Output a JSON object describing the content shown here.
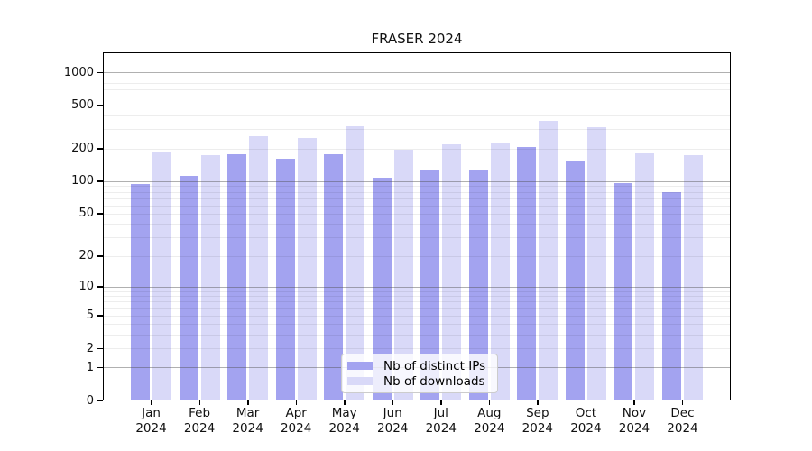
{
  "title": "FRASER 2024",
  "chart_data": {
    "type": "bar",
    "title": "FRASER 2024",
    "categories": [
      "Jan",
      "Feb",
      "Mar",
      "Apr",
      "May",
      "Jun",
      "Jul",
      "Aug",
      "Sep",
      "Oct",
      "Nov",
      "Dec"
    ],
    "year_label": "2024",
    "series": [
      {
        "name": "Nb of distinct IPs",
        "color": "#a3a3f0",
        "values": [
          94,
          113,
          177,
          161,
          177,
          107,
          127,
          128,
          206,
          155,
          97,
          79
        ]
      },
      {
        "name": "Nb of downloads",
        "color": "#d9d9f8",
        "values": [
          185,
          174,
          261,
          251,
          320,
          195,
          219,
          222,
          361,
          314,
          181,
          175
        ]
      }
    ],
    "xlabel": "",
    "ylabel": "",
    "yscale": "symlog-log1p",
    "ylim": [
      0,
      1500
    ],
    "yticks": [
      1000,
      500,
      200,
      100,
      50,
      20,
      10,
      5,
      2,
      1,
      0
    ],
    "grid": "horizontal major (powers of 10) dark gray, log minors light gray, drawn over bars",
    "legend_position": "lower center inside plot",
    "legend_background": "rgba(255,255,255,0.8)",
    "grid_major_color": "#b0b0b0",
    "grid_minor_color": "#ececec"
  }
}
